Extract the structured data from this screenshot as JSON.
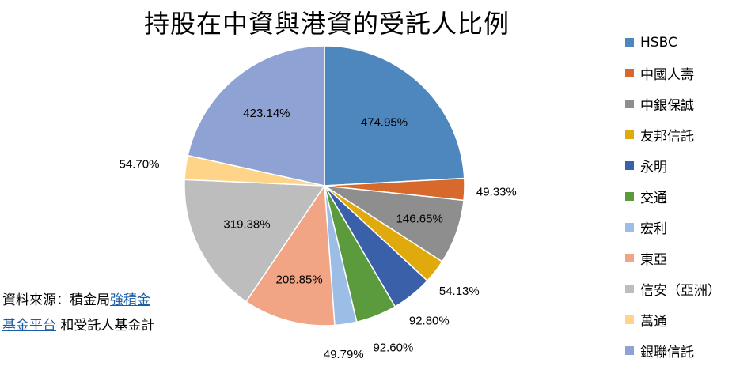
{
  "chart_data": {
    "type": "pie",
    "title": "持股在中資與港資的受託人比例",
    "legend_position": "right",
    "categories": [
      "HSBC",
      "中國人壽",
      "中銀保誠",
      "友邦信託",
      "永明",
      "交通",
      "宏利",
      "東亞",
      "信安（亞洲）",
      "萬通",
      "銀聯信託"
    ],
    "values": [
      474.95,
      49.33,
      146.65,
      54.13,
      92.8,
      92.6,
      49.79,
      208.85,
      319.38,
      54.7,
      423.14
    ],
    "labels": [
      "474.95%",
      "49.33%",
      "146.65%",
      "54.13%",
      "92.80%",
      "92.60%",
      "49.79%",
      "208.85%",
      "319.38%",
      "54.70%",
      "423.14%"
    ],
    "colors": [
      "#4e86be",
      "#d8692c",
      "#8e8e8e",
      "#e1aa0c",
      "#3b60aa",
      "#5c9a3e",
      "#9cbde6",
      "#f1a585",
      "#bdbdbd",
      "#fdd488",
      "#8fa2d4"
    ]
  },
  "source": {
    "prefix": "資料來源：積金局",
    "link1": "強積金",
    "link2": "基金平台",
    "suffix": " 和受託人基金計"
  }
}
